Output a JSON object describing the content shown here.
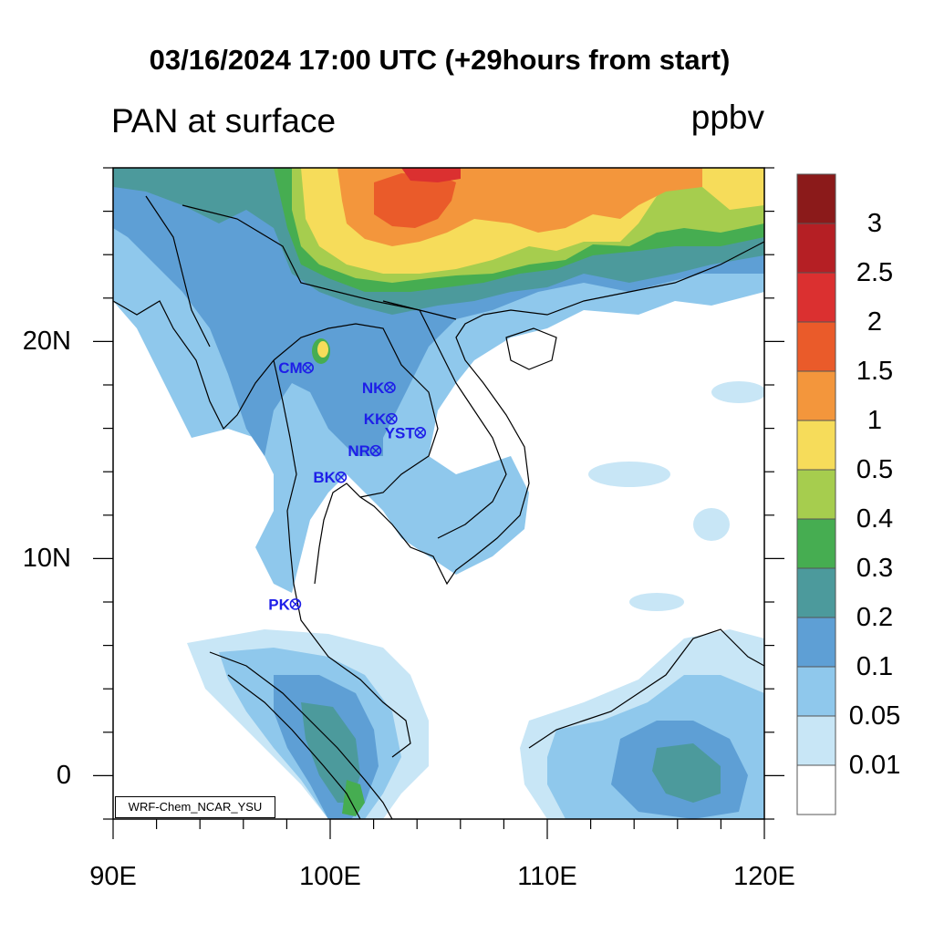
{
  "title": "03/16/2024 17:00 UTC (+29hours from start)",
  "variable_title": "PAN at surface",
  "units": "ppbv",
  "lat_labels": [
    "20N",
    "10N",
    "0"
  ],
  "lon_labels": [
    "90E",
    "100E",
    "110E",
    "120E"
  ],
  "colorbar": {
    "labels": [
      "3",
      "2.5",
      "2",
      "1.5",
      "1",
      "0.5",
      "0.4",
      "0.3",
      "0.2",
      "0.1",
      "0.05",
      "0.01"
    ],
    "colors": [
      "#8b1a1a",
      "#b51f24",
      "#db3030",
      "#ea5b2a",
      "#f3963c",
      "#f6dc5a",
      "#a6cd4e",
      "#46ad51",
      "#4c9a9c",
      "#5e9fd5",
      "#8fc8ec",
      "#c8e6f6",
      "#ffffff"
    ]
  },
  "stations": [
    {
      "label": "CM",
      "lon": 98.98,
      "lat": 18.79
    },
    {
      "label": "NK",
      "lon": 102.75,
      "lat": 17.88
    },
    {
      "label": "KK",
      "lon": 102.83,
      "lat": 16.44
    },
    {
      "label": "YST",
      "lon": 104.15,
      "lat": 15.8
    },
    {
      "label": "NR",
      "lon": 102.1,
      "lat": 14.97
    },
    {
      "label": "BK",
      "lon": 100.5,
      "lat": 13.75
    },
    {
      "label": "PK",
      "lon": 98.4,
      "lat": 7.9
    }
  ],
  "watermark": "WRF-Chem_NCAR_YSU"
}
